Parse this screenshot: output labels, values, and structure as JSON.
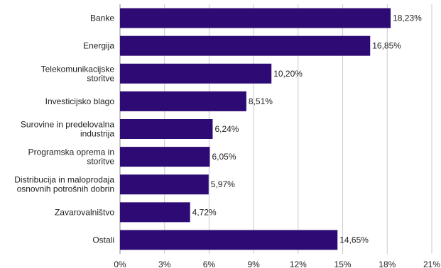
{
  "chart_data": {
    "type": "bar",
    "orientation": "horizontal",
    "title": "",
    "xlabel": "",
    "ylabel": "",
    "categories": [
      [
        "Banke"
      ],
      [
        "Energija"
      ],
      [
        "Telekomunikacijske",
        "storitve"
      ],
      [
        "Investicijsko blago"
      ],
      [
        "Surovine in predelovalna",
        "industrija"
      ],
      [
        "Programska oprema in",
        "storitve"
      ],
      [
        "Distribucija in maloprodaja",
        "osnovnih potrošnih dobrin"
      ],
      [
        "Zavarovalništvo"
      ],
      [
        "Ostali"
      ]
    ],
    "values": [
      18.23,
      16.85,
      10.2,
      8.51,
      6.24,
      6.05,
      5.97,
      4.72,
      14.65
    ],
    "value_labels": [
      "18,23%",
      "16,85%",
      "10,20%",
      "8,51%",
      "6,24%",
      "6,05%",
      "5,97%",
      "4,72%",
      "14,65%"
    ],
    "xlim": [
      0,
      21
    ],
    "x_ticks": [
      0,
      3,
      6,
      9,
      12,
      15,
      18,
      21
    ],
    "x_tick_labels": [
      "0%",
      "3%",
      "6%",
      "9%",
      "12%",
      "15%",
      "18%",
      "21%"
    ],
    "grid": "vertical",
    "legend": "none",
    "bar_color": "#2e0a74",
    "grid_color": "#c9c9d6"
  }
}
